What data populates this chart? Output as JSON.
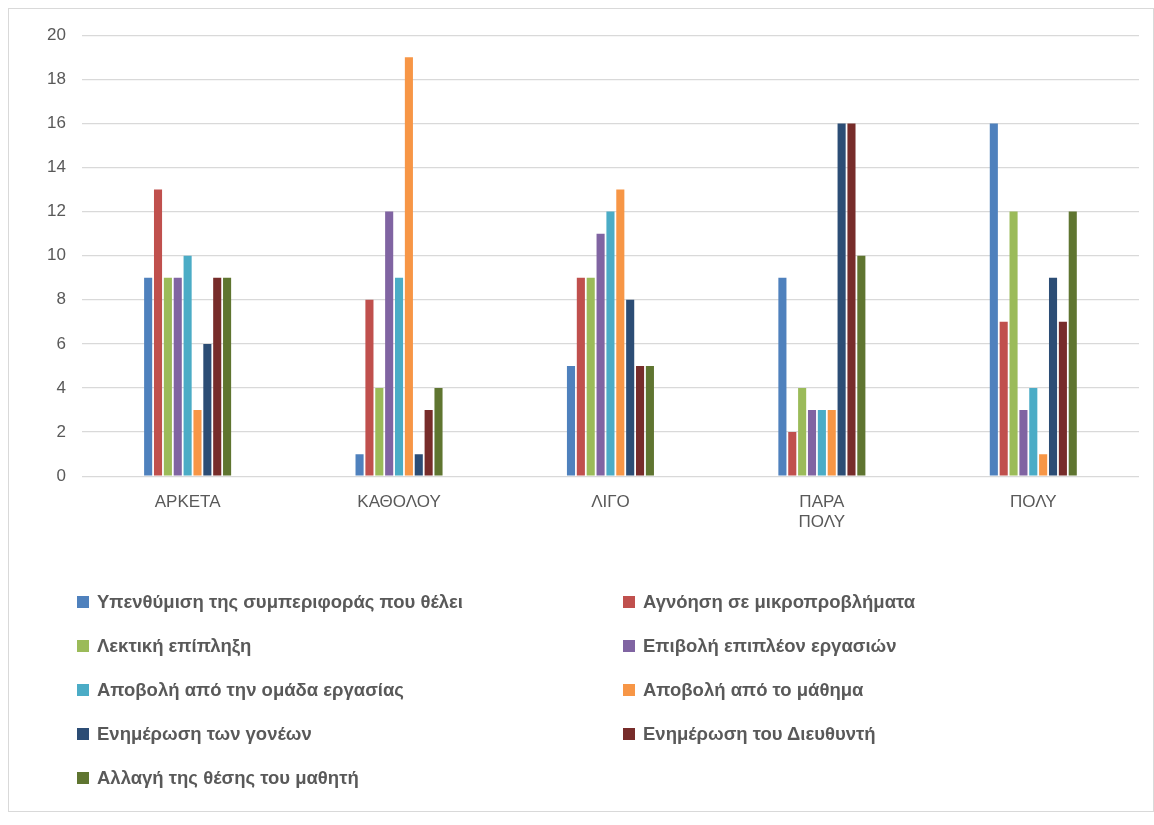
{
  "chart_data": {
    "type": "bar",
    "categories": [
      "ΑΡΚΕΤΑ",
      "ΚΑΘΟΛΟΥ",
      "ΛΙΓΟ",
      "ΠΑΡΑ ΠΟΛΥ",
      "ΠΟΛΥ"
    ],
    "series": [
      {
        "name": "Υπενθύμιση της συμπεριφοράς που θέλει",
        "color": "#4f81bd",
        "values": [
          9,
          1,
          5,
          9,
          16
        ]
      },
      {
        "name": "Αγνόηση σε μικροπροβλήματα",
        "color": "#c0504d",
        "values": [
          13,
          8,
          9,
          2,
          7
        ]
      },
      {
        "name": "Λεκτική επίπληξη",
        "color": "#9bbb59",
        "values": [
          9,
          4,
          9,
          4,
          12
        ]
      },
      {
        "name": "Επιβολή επιπλέον εργασιών",
        "color": "#8064a2",
        "values": [
          9,
          12,
          11,
          3,
          3
        ]
      },
      {
        "name": "Αποβολή από την ομάδα εργασίας",
        "color": "#4bacc6",
        "values": [
          10,
          9,
          12,
          3,
          4
        ]
      },
      {
        "name": "Αποβολή από το μάθημα",
        "color": "#f79646",
        "values": [
          3,
          19,
          13,
          3,
          1
        ]
      },
      {
        "name": "Ενημέρωση των γονέων",
        "color": "#2c4d75",
        "values": [
          6,
          1,
          8,
          16,
          9
        ]
      },
      {
        "name": "Ενημέρωση του Διευθυντή",
        "color": "#772c2a",
        "values": [
          9,
          3,
          5,
          16,
          7
        ]
      },
      {
        "name": "Αλλαγή της θέσης του μαθητή",
        "color": "#5f7530",
        "values": [
          9,
          4,
          5,
          10,
          12
        ]
      }
    ],
    "ylim": [
      0,
      20
    ],
    "yticks": [
      0,
      2,
      4,
      6,
      8,
      10,
      12,
      14,
      16,
      18,
      20
    ],
    "grid": "y",
    "legend": "bottom"
  }
}
